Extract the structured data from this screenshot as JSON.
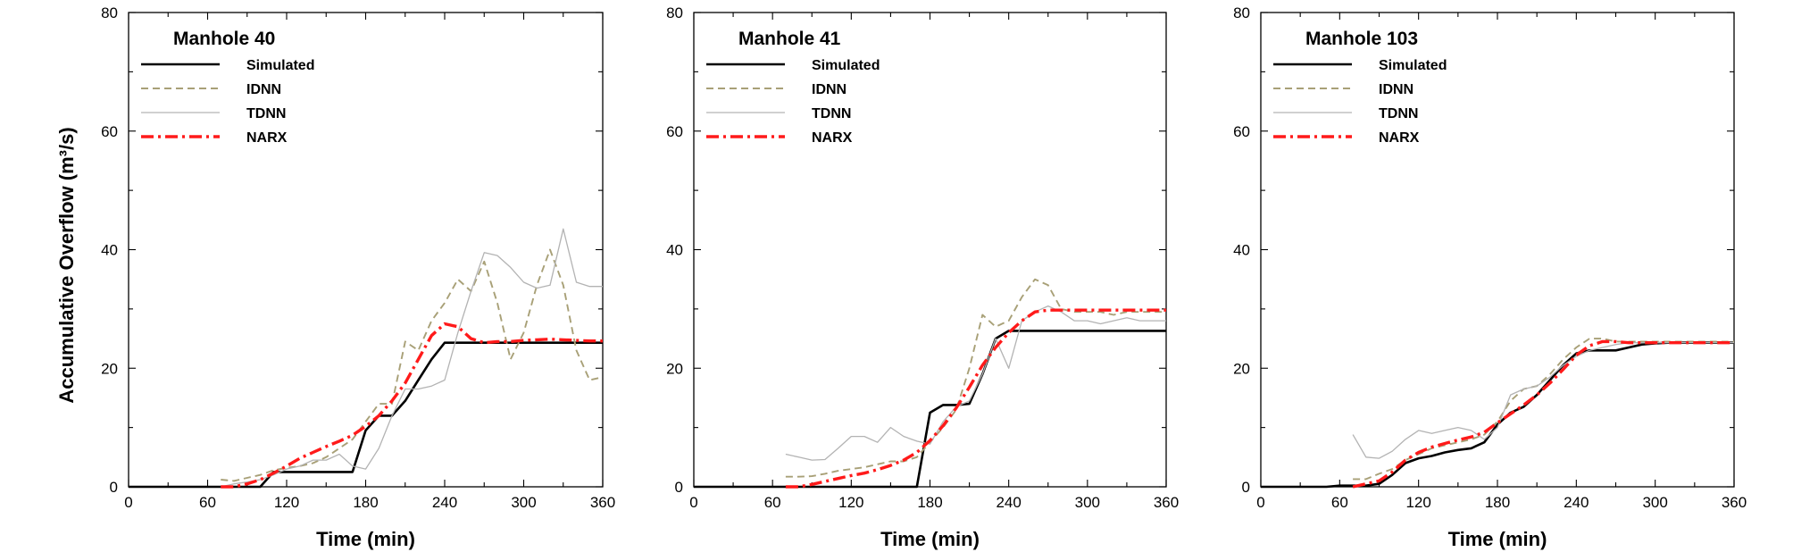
{
  "chart_data": [
    {
      "type": "line",
      "title": "Manhole 40",
      "xlabel": "Time (min)",
      "ylabel": "Accumulative Overflow (m³/s)",
      "xlim": [
        0,
        360
      ],
      "ylim": [
        0,
        80
      ],
      "xticks": [
        0,
        60,
        120,
        180,
        240,
        300,
        360
      ],
      "yticks": [
        0,
        20,
        40,
        60,
        80
      ],
      "legend": "top-left",
      "series": [
        {
          "name": "Simulated",
          "style": "solid",
          "color": "#000000",
          "x": [
            0,
            10,
            20,
            30,
            40,
            50,
            60,
            70,
            80,
            90,
            100,
            110,
            120,
            130,
            140,
            150,
            160,
            170,
            180,
            190,
            200,
            210,
            220,
            230,
            240,
            250,
            260,
            270,
            280,
            290,
            300,
            310,
            320,
            330,
            340,
            350,
            360
          ],
          "y": [
            0,
            0,
            0,
            0,
            0,
            0,
            0,
            0,
            0,
            0,
            0,
            2.5,
            2.5,
            2.5,
            2.5,
            2.5,
            2.5,
            2.5,
            9.5,
            12,
            12,
            14.5,
            18,
            21.5,
            24.3,
            24.3,
            24.3,
            24.3,
            24.3,
            24.3,
            24.3,
            24.3,
            24.3,
            24.3,
            24.3,
            24.3,
            24.3
          ]
        },
        {
          "name": "IDNN",
          "style": "dashed",
          "color": "#a8a077",
          "x": [
            70,
            80,
            90,
            100,
            110,
            120,
            130,
            140,
            150,
            160,
            170,
            180,
            190,
            200,
            210,
            220,
            230,
            240,
            250,
            260,
            270,
            280,
            290,
            300,
            310,
            320,
            330,
            340,
            350,
            360
          ],
          "y": [
            1.2,
            1.0,
            1.5,
            2.0,
            2.8,
            3.2,
            3.5,
            4.0,
            5.0,
            6.5,
            8,
            11,
            14,
            14,
            24.5,
            23,
            28,
            31,
            35,
            33,
            38,
            31,
            21.5,
            26,
            34,
            40,
            34,
            23,
            18,
            18.5
          ]
        },
        {
          "name": "TDNN",
          "style": "solid-thin",
          "color": "#b3b3b3",
          "x": [
            70,
            80,
            90,
            100,
            110,
            120,
            130,
            140,
            150,
            160,
            170,
            180,
            190,
            200,
            210,
            220,
            230,
            240,
            250,
            260,
            270,
            280,
            290,
            300,
            310,
            320,
            330,
            340,
            350,
            360
          ],
          "y": [
            0,
            0.5,
            0.8,
            1.2,
            2.0,
            3.0,
            3.5,
            4.5,
            4.5,
            5.5,
            3.5,
            3.0,
            6.5,
            12,
            16.5,
            16.5,
            17,
            18,
            26,
            33,
            39.5,
            39,
            37,
            34.5,
            33.5,
            34,
            43.5,
            34.5,
            33.8,
            33.8
          ]
        },
        {
          "name": "NARX",
          "style": "dashdot",
          "color": "#ff1a1a",
          "x": [
            70,
            80,
            90,
            100,
            110,
            120,
            130,
            140,
            150,
            160,
            170,
            180,
            190,
            200,
            210,
            220,
            230,
            240,
            250,
            260,
            270,
            280,
            290,
            300,
            310,
            320,
            330,
            340,
            350,
            360
          ],
          "y": [
            0,
            0,
            0.5,
            1.2,
            2.3,
            3.5,
            4.8,
            5.8,
            6.8,
            7.7,
            8.7,
            10.2,
            12,
            14.5,
            17.5,
            21.5,
            25.5,
            27.5,
            27,
            25,
            24.3,
            24.5,
            24.5,
            24.7,
            24.8,
            24.9,
            24.8,
            24.7,
            24.6,
            24.6
          ]
        }
      ]
    },
    {
      "type": "line",
      "title": "Manhole 41",
      "xlabel": "Time (min)",
      "ylabel": "",
      "xlim": [
        0,
        360
      ],
      "ylim": [
        0,
        80
      ],
      "xticks": [
        0,
        60,
        120,
        180,
        240,
        300,
        360
      ],
      "yticks": [
        0,
        20,
        40,
        60,
        80
      ],
      "legend": "top-left",
      "series": [
        {
          "name": "Simulated",
          "style": "solid",
          "color": "#000000",
          "x": [
            0,
            10,
            20,
            30,
            40,
            50,
            60,
            70,
            80,
            90,
            100,
            110,
            120,
            130,
            140,
            150,
            160,
            170,
            180,
            190,
            200,
            210,
            220,
            230,
            240,
            250,
            260,
            270,
            280,
            290,
            300,
            310,
            320,
            330,
            340,
            350,
            360
          ],
          "y": [
            0,
            0,
            0,
            0,
            0,
            0,
            0,
            0,
            0,
            0,
            0,
            0,
            0,
            0,
            0,
            0,
            0,
            0,
            12.5,
            13.8,
            13.8,
            14,
            19,
            25,
            26.3,
            26.3,
            26.3,
            26.3,
            26.3,
            26.3,
            26.3,
            26.3,
            26.3,
            26.3,
            26.3,
            26.3,
            26.3
          ]
        },
        {
          "name": "IDNN",
          "style": "dashed",
          "color": "#a8a077",
          "x": [
            70,
            80,
            90,
            100,
            110,
            120,
            130,
            140,
            150,
            160,
            170,
            180,
            190,
            200,
            210,
            220,
            230,
            240,
            250,
            260,
            270,
            280,
            290,
            300,
            310,
            320,
            330,
            340,
            350,
            360
          ],
          "y": [
            1.7,
            1.7,
            1.8,
            2.2,
            2.7,
            3.0,
            3.3,
            3.8,
            4.3,
            4.3,
            5,
            7.5,
            10,
            13,
            20,
            29,
            27,
            28,
            32,
            35,
            34,
            30,
            29.5,
            29.5,
            29.5,
            29,
            29.5,
            29.5,
            29.5,
            29.5
          ]
        },
        {
          "name": "TDNN",
          "style": "solid-thin",
          "color": "#b3b3b3",
          "x": [
            70,
            80,
            90,
            100,
            110,
            120,
            130,
            140,
            150,
            160,
            170,
            180,
            190,
            200,
            210,
            220,
            230,
            240,
            250,
            260,
            270,
            280,
            290,
            300,
            310,
            320,
            330,
            340,
            350,
            360
          ],
          "y": [
            5.5,
            5,
            4.5,
            4.6,
            6.5,
            8.5,
            8.5,
            7.5,
            10,
            8.5,
            7.7,
            7.2,
            11,
            13.5,
            14.5,
            19,
            25,
            20,
            28,
            29.5,
            30.5,
            29.5,
            28,
            28,
            27.5,
            28,
            28.5,
            28,
            28,
            28
          ]
        },
        {
          "name": "NARX",
          "style": "dashdot",
          "color": "#ff1a1a",
          "x": [
            70,
            80,
            90,
            100,
            110,
            120,
            130,
            140,
            150,
            160,
            170,
            180,
            190,
            200,
            210,
            220,
            230,
            240,
            250,
            260,
            270,
            280,
            290,
            300,
            310,
            320,
            330,
            340,
            350,
            360
          ],
          "y": [
            0,
            0,
            0.4,
            0.9,
            1.4,
            1.9,
            2.3,
            2.9,
            3.6,
            4.5,
            5.8,
            7.8,
            10.3,
            13.3,
            16.8,
            20.5,
            23.5,
            26,
            28,
            29.5,
            29.8,
            29.8,
            29.8,
            29.8,
            29.8,
            29.8,
            29.8,
            29.8,
            29.8,
            29.8
          ]
        }
      ]
    },
    {
      "type": "line",
      "title": "Manhole 103",
      "xlabel": "Time (min)",
      "ylabel": "",
      "xlim": [
        0,
        360
      ],
      "ylim": [
        0,
        80
      ],
      "xticks": [
        0,
        60,
        120,
        180,
        240,
        300,
        360
      ],
      "yticks": [
        0,
        20,
        40,
        60,
        80
      ],
      "legend": "top-left",
      "series": [
        {
          "name": "Simulated",
          "style": "solid",
          "color": "#000000",
          "x": [
            0,
            10,
            20,
            30,
            40,
            50,
            60,
            70,
            80,
            90,
            100,
            110,
            120,
            130,
            140,
            150,
            160,
            170,
            180,
            190,
            200,
            210,
            220,
            230,
            240,
            250,
            260,
            270,
            280,
            290,
            300,
            310,
            320,
            330,
            340,
            350,
            360
          ],
          "y": [
            0,
            0,
            0,
            0,
            0,
            0,
            0.2,
            0.2,
            0.2,
            0.5,
            2,
            4,
            4.8,
            5.2,
            5.8,
            6.2,
            6.5,
            7.5,
            10.5,
            12.5,
            13.5,
            15.5,
            18,
            20.5,
            22.5,
            23,
            23,
            23,
            23.5,
            24,
            24.2,
            24.3,
            24.3,
            24.3,
            24.3,
            24.3,
            24.3
          ]
        },
        {
          "name": "IDNN",
          "style": "dashed",
          "color": "#a8a077",
          "x": [
            70,
            80,
            90,
            100,
            110,
            120,
            130,
            140,
            150,
            160,
            170,
            180,
            190,
            200,
            210,
            220,
            230,
            240,
            250,
            260,
            270,
            280,
            290,
            300,
            310,
            320,
            330,
            340,
            350,
            360
          ],
          "y": [
            1.3,
            1.3,
            2.2,
            3,
            4.5,
            5.5,
            6.5,
            7,
            7.5,
            8,
            8.8,
            11,
            14.5,
            16.5,
            17,
            19,
            21.5,
            23.5,
            25,
            25,
            24.5,
            24.5,
            24.5,
            24.5,
            24.5,
            24.5,
            24.5,
            24.5,
            24.5,
            24.5
          ]
        },
        {
          "name": "TDNN",
          "style": "solid-thin",
          "color": "#b3b3b3",
          "x": [
            70,
            80,
            90,
            100,
            110,
            120,
            130,
            140,
            150,
            160,
            170,
            180,
            190,
            200,
            210,
            220,
            230,
            240,
            250,
            260,
            270,
            280,
            290,
            300,
            310,
            320,
            330,
            340,
            350,
            360
          ],
          "y": [
            8.8,
            5,
            4.8,
            6,
            8,
            9.5,
            9,
            9.5,
            10,
            9.5,
            8,
            10,
            15.5,
            16.5,
            17,
            18.5,
            20.5,
            22,
            23,
            23.5,
            24,
            24.3,
            24.3,
            24.3,
            24.3,
            24.3,
            24.3,
            24.3,
            24.3,
            24.3
          ]
        },
        {
          "name": "NARX",
          "style": "dashdot",
          "color": "#ff1a1a",
          "x": [
            70,
            80,
            90,
            100,
            110,
            120,
            130,
            140,
            150,
            160,
            170,
            180,
            190,
            200,
            210,
            220,
            230,
            240,
            250,
            260,
            270,
            280,
            290,
            300,
            310,
            320,
            330,
            340,
            350,
            360
          ],
          "y": [
            0,
            0.5,
            1,
            2.5,
            4.5,
            5.8,
            6.7,
            7.3,
            7.9,
            8.4,
            9.2,
            10.8,
            12.3,
            13.8,
            15.5,
            17.5,
            19.8,
            22.2,
            23.8,
            24.5,
            24.5,
            24.3,
            24.3,
            24.3,
            24.3,
            24.3,
            24.3,
            24.3,
            24.3,
            24.3
          ]
        }
      ]
    }
  ]
}
